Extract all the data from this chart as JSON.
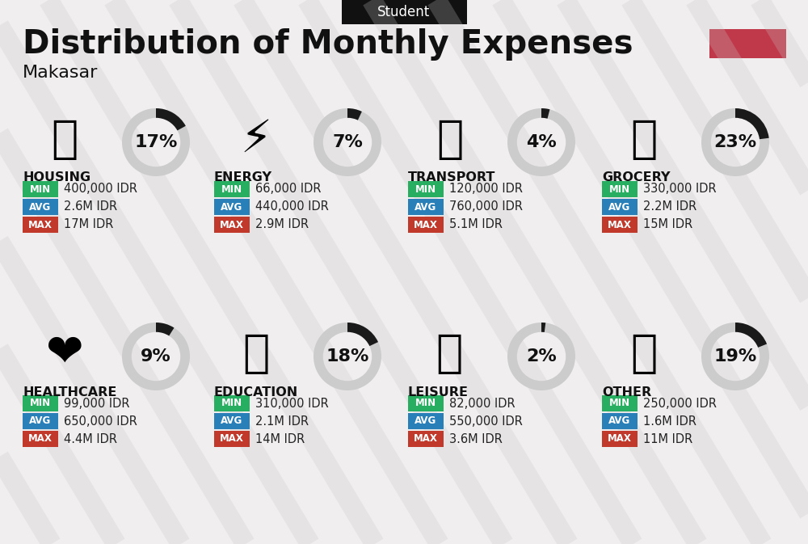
{
  "title": "Distribution of Monthly Expenses",
  "subtitle": "Student",
  "location": "Makasar",
  "bg_color": "#f0eeee",
  "title_color": "#111111",
  "subtitle_bg": "#111111",
  "subtitle_text_color": "#ffffff",
  "red_box_color": "#c0394b",
  "categories": [
    {
      "name": "HOUSING",
      "pct": 17,
      "min": "400,000 IDR",
      "avg": "2.6M IDR",
      "max": "17M IDR",
      "icon": "housing",
      "row": 0,
      "col": 0
    },
    {
      "name": "ENERGY",
      "pct": 7,
      "min": "66,000 IDR",
      "avg": "440,000 IDR",
      "max": "2.9M IDR",
      "icon": "energy",
      "row": 0,
      "col": 1
    },
    {
      "name": "TRANSPORT",
      "pct": 4,
      "min": "120,000 IDR",
      "avg": "760,000 IDR",
      "max": "5.1M IDR",
      "icon": "transport",
      "row": 0,
      "col": 2
    },
    {
      "name": "GROCERY",
      "pct": 23,
      "min": "330,000 IDR",
      "avg": "2.2M IDR",
      "max": "15M IDR",
      "icon": "grocery",
      "row": 0,
      "col": 3
    },
    {
      "name": "HEALTHCARE",
      "pct": 9,
      "min": "99,000 IDR",
      "avg": "650,000 IDR",
      "max": "4.4M IDR",
      "icon": "healthcare",
      "row": 1,
      "col": 0
    },
    {
      "name": "EDUCATION",
      "pct": 18,
      "min": "310,000 IDR",
      "avg": "2.1M IDR",
      "max": "14M IDR",
      "icon": "education",
      "row": 1,
      "col": 1
    },
    {
      "name": "LEISURE",
      "pct": 2,
      "min": "82,000 IDR",
      "avg": "550,000 IDR",
      "max": "3.6M IDR",
      "icon": "leisure",
      "row": 1,
      "col": 2
    },
    {
      "name": "OTHER",
      "pct": 19,
      "min": "250,000 IDR",
      "avg": "1.6M IDR",
      "max": "11M IDR",
      "icon": "other",
      "row": 1,
      "col": 3
    }
  ],
  "min_color": "#27ae60",
  "avg_color": "#2980b9",
  "max_color": "#c0392b",
  "label_text_color": "#ffffff",
  "value_text_color": "#222222",
  "donut_track_color": "#cccccc",
  "donut_fill_color": "#1a1a1a",
  "category_name_color": "#111111"
}
